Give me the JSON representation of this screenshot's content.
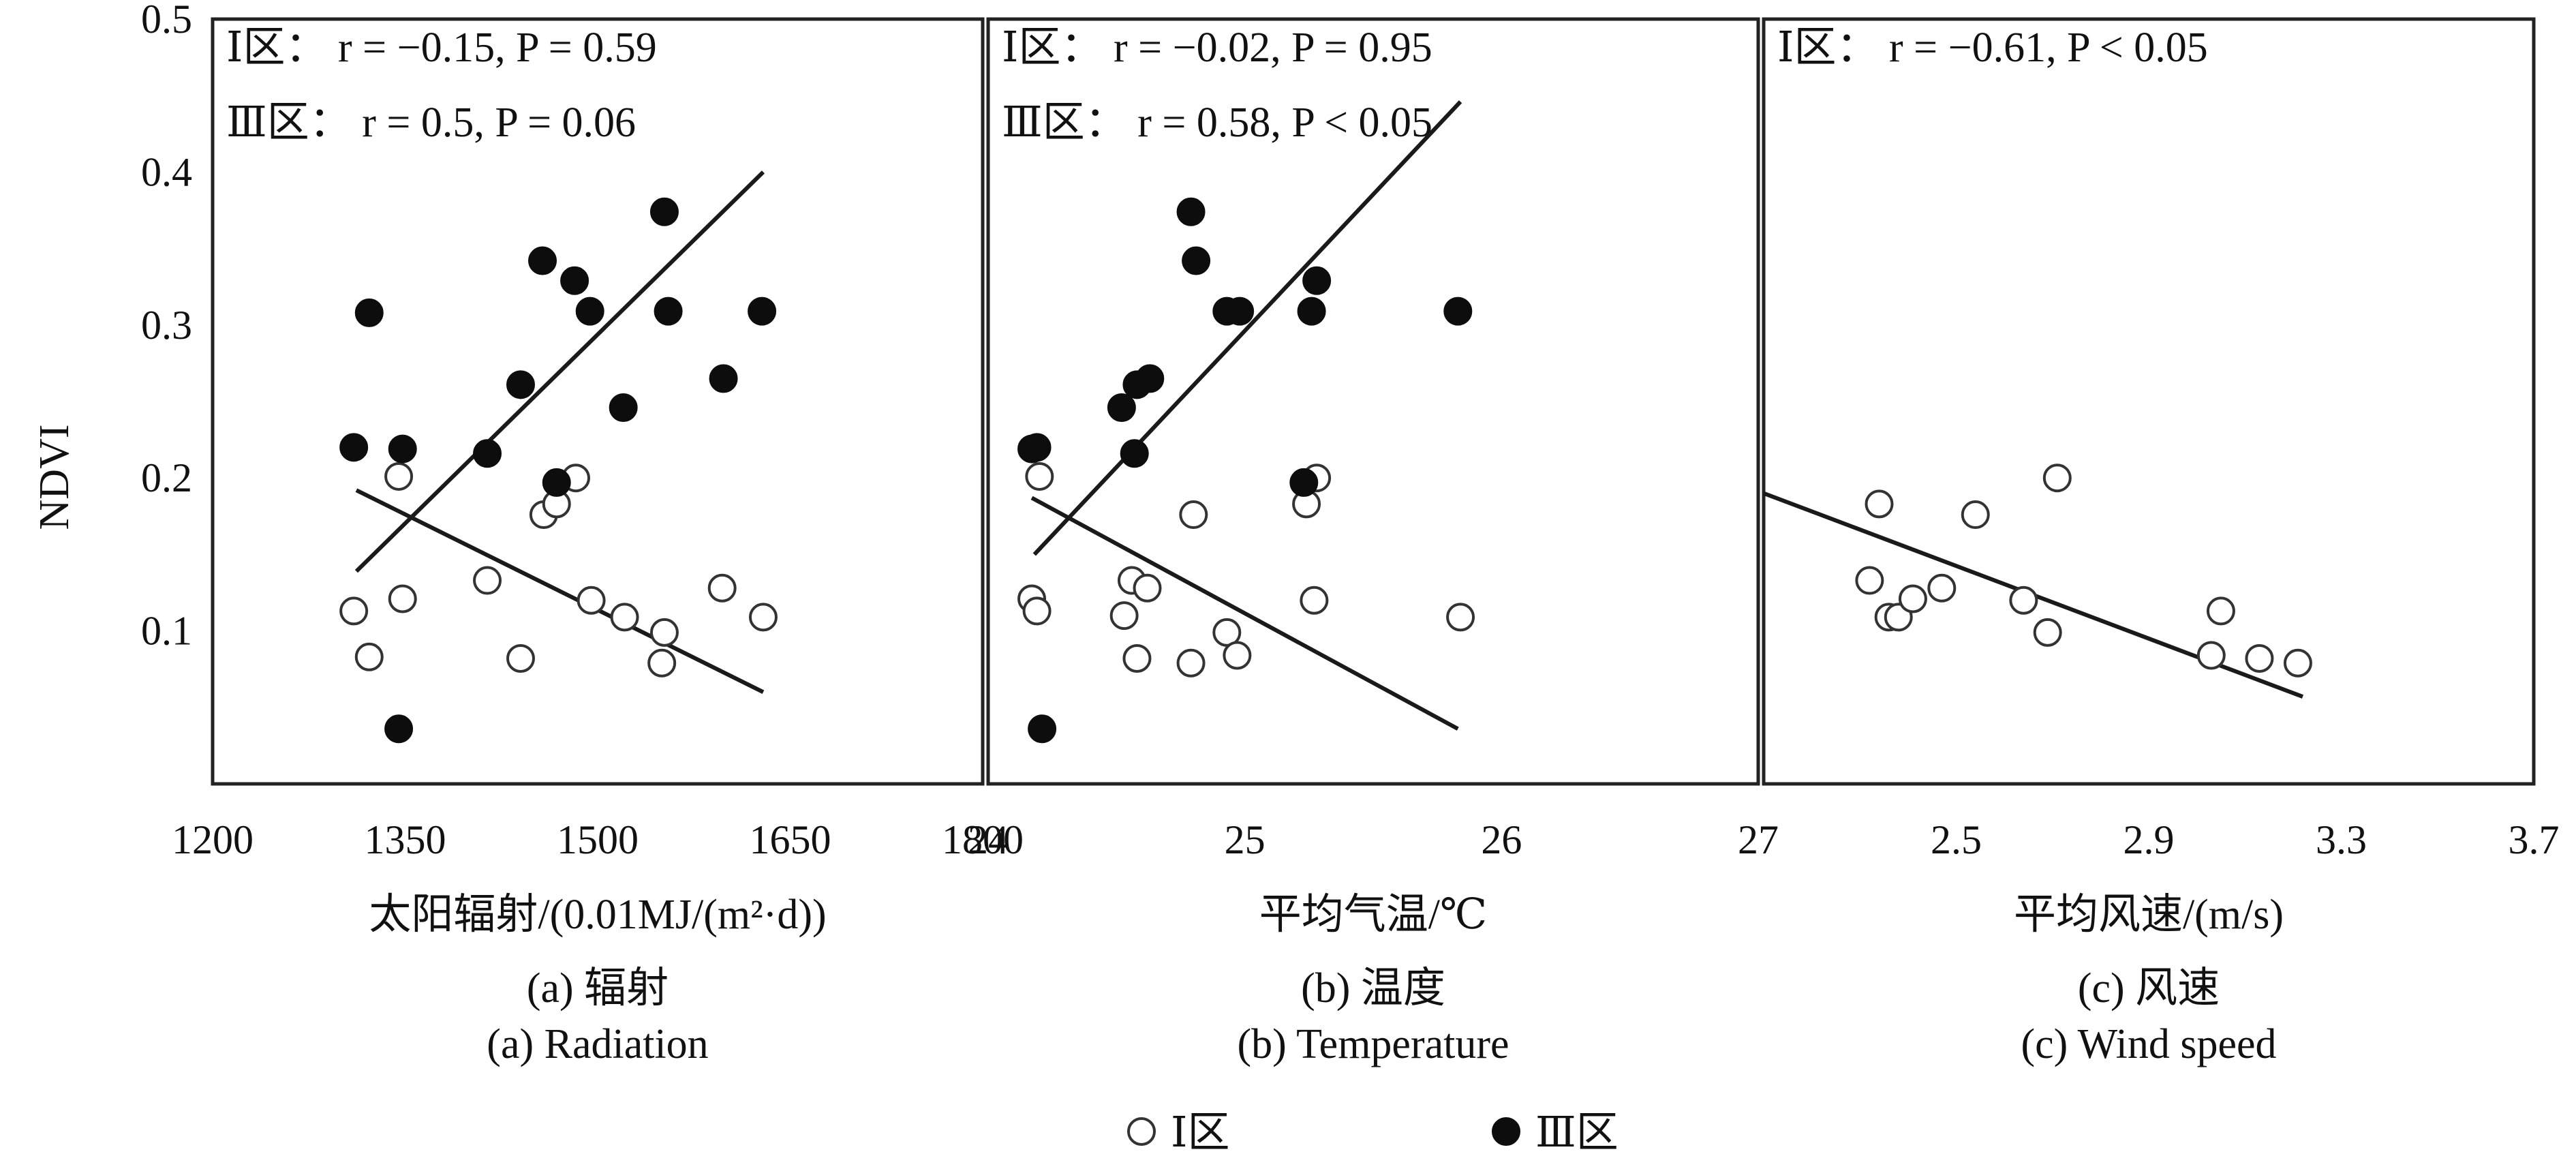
{
  "y_axis": {
    "label": "NDVI",
    "ylim": [
      0,
      0.5
    ],
    "ticks": [
      "0.5",
      "0.4",
      "0.3",
      "0.2",
      "0.1"
    ]
  },
  "legend": {
    "placement": "bottom-center",
    "items": [
      {
        "label": "Ⅰ区",
        "marker": "open-circle"
      },
      {
        "label": "Ⅲ区",
        "marker": "filled-circle"
      }
    ]
  },
  "chart_data": [
    {
      "type": "scatter",
      "xlabel": "太阳辐射/(0.01MJ/(m²·d))",
      "xlim": [
        1200,
        1800
      ],
      "ticks": [
        "1200",
        "1350",
        "1500",
        "1650",
        "1800"
      ],
      "caption_cn": "(a) 辐射",
      "caption_en": "(a) Radiation",
      "stats": [
        "Ⅰ区： r = −0.15, P = 0.59",
        "Ⅲ区： r = 0.5, P = 0.06"
      ],
      "series": [
        {
          "name": "Ⅰ区",
          "x": [
            1310,
            1322,
            1345,
            1348,
            1414,
            1440,
            1458,
            1468,
            1483,
            1495,
            1521,
            1550,
            1552,
            1597,
            1629
          ],
          "y": [
            0.113,
            0.083,
            0.201,
            0.121,
            0.133,
            0.082,
            0.176,
            0.183,
            0.2,
            0.12,
            0.109,
            0.079,
            0.099,
            0.128,
            0.109
          ],
          "fit": [
            [
              1312,
              0.192
            ],
            [
              1629,
              0.06
            ]
          ]
        },
        {
          "name": "Ⅲ区",
          "x": [
            1310,
            1322,
            1345,
            1348,
            1414,
            1440,
            1457,
            1468,
            1482,
            1494,
            1520,
            1552,
            1555,
            1598,
            1628
          ],
          "y": [
            0.22,
            0.308,
            0.036,
            0.219,
            0.216,
            0.261,
            0.342,
            0.197,
            0.329,
            0.309,
            0.246,
            0.374,
            0.309,
            0.265,
            0.309
          ],
          "fit": [
            [
              1312,
              0.139
            ],
            [
              1629,
              0.4
            ]
          ]
        }
      ]
    },
    {
      "type": "scatter",
      "xlabel": "平均气温/℃",
      "xlim": [
        24,
        27
      ],
      "ticks": [
        "24",
        "25",
        "26",
        "27"
      ],
      "caption_cn": "(b) 温度",
      "caption_en": "(b) Temperature",
      "stats": [
        "Ⅰ区： r = −0.02, P = 0.95",
        "Ⅲ区： r = 0.58, P < 0.05"
      ],
      "series": [
        {
          "name": "Ⅰ区",
          "x": [
            24.17,
            24.19,
            24.2,
            24.53,
            24.56,
            24.58,
            24.62,
            24.79,
            24.8,
            24.93,
            24.97,
            25.24,
            25.27,
            25.28,
            25.84
          ],
          "y": [
            0.121,
            0.113,
            0.201,
            0.11,
            0.133,
            0.082,
            0.128,
            0.079,
            0.176,
            0.099,
            0.084,
            0.183,
            0.12,
            0.2,
            0.109
          ],
          "fit": [
            [
              24.17,
              0.187
            ],
            [
              25.83,
              0.036
            ]
          ]
        },
        {
          "name": "Ⅲ区",
          "x": [
            24.17,
            24.19,
            24.21,
            24.52,
            24.57,
            24.58,
            24.63,
            24.79,
            24.81,
            24.93,
            24.98,
            25.23,
            25.26,
            25.28,
            25.83
          ],
          "y": [
            0.219,
            0.22,
            0.036,
            0.246,
            0.216,
            0.261,
            0.265,
            0.374,
            0.342,
            0.309,
            0.309,
            0.197,
            0.309,
            0.329,
            0.309
          ],
          "fit": [
            [
              24.18,
              0.15
            ],
            [
              25.84,
              0.446
            ]
          ]
        }
      ]
    },
    {
      "type": "scatter",
      "xlabel": "平均风速/(m/s)",
      "xlim": [
        2.1,
        3.7
      ],
      "ticks": [
        "2.5",
        "2.9",
        "3.3",
        "3.7"
      ],
      "caption_cn": "(c) 风速",
      "caption_en": "(c) Wind speed",
      "stats": [
        "Ⅰ区： r = −0.61, P < 0.05"
      ],
      "series": [
        {
          "name": "Ⅰ区",
          "x": [
            2.32,
            2.34,
            2.36,
            2.38,
            2.41,
            2.47,
            2.54,
            2.64,
            2.69,
            2.71,
            3.03,
            3.05,
            3.13,
            3.21
          ],
          "y": [
            0.133,
            0.183,
            0.109,
            0.109,
            0.121,
            0.128,
            0.176,
            0.12,
            0.099,
            0.2,
            0.084,
            0.113,
            0.082,
            0.079
          ],
          "fit": [
            [
              2.1,
              0.19
            ],
            [
              3.22,
              0.057
            ]
          ]
        }
      ]
    }
  ]
}
